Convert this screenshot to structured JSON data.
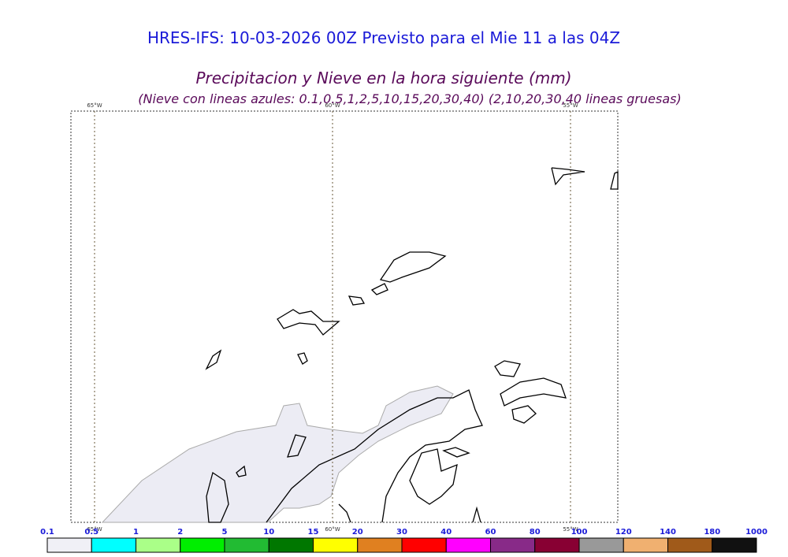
{
  "header": {
    "title": "HRES-IFS: 10-03-2026 00Z Previsto para el Mie 11 a las 04Z"
  },
  "map": {
    "title": "Precipitacion y Nieve en la hora siguiente (mm)",
    "subtitle": "(Nieve con lineas azules: 0.1,0.5,1,2,5,10,15,20,30,40)  (2,10,20,30,40 lineas gruesas)",
    "meridians": [
      {
        "label": "65°W"
      },
      {
        "label": "60°W"
      },
      {
        "label": "55°W"
      }
    ]
  },
  "colorbar": {
    "labels": [
      "0.1",
      "0.5",
      "1",
      "2",
      "5",
      "10",
      "15",
      "20",
      "30",
      "40",
      "60",
      "80",
      "100",
      "120",
      "140",
      "180",
      "1000"
    ],
    "colors": [
      "#f0f0f6",
      "#00ffff",
      "#aaff88",
      "#00ee00",
      "#22bb33",
      "#007700",
      "#ffff00",
      "#e08020",
      "#ff0000",
      "#ff00ff",
      "#882a88",
      "#880033",
      "#999999",
      "#f0b070",
      "#a05a1a",
      "#111111"
    ]
  }
}
